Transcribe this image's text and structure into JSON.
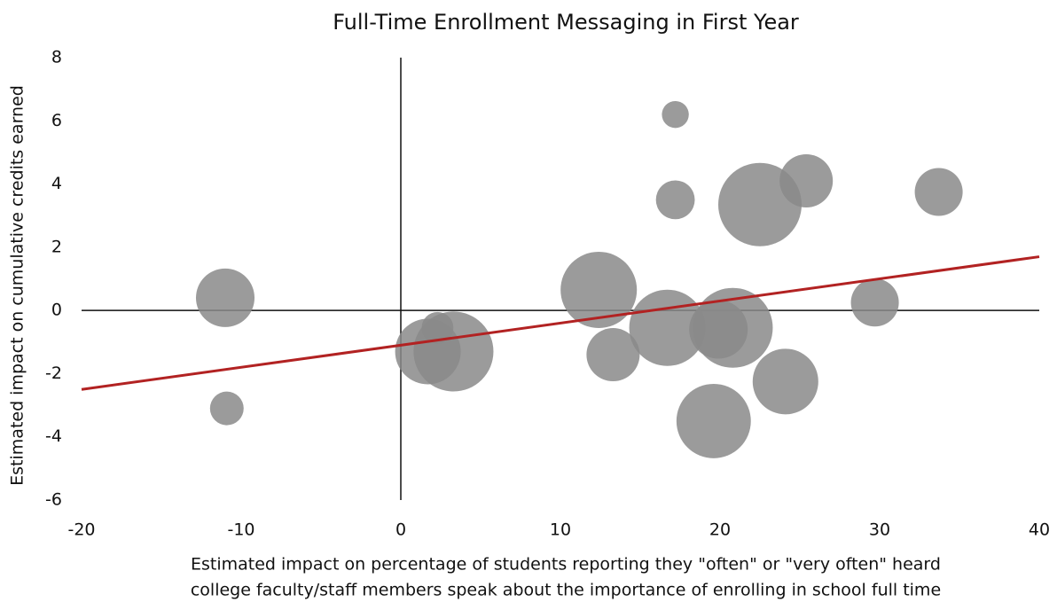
{
  "chart_data": {
    "type": "bubble",
    "title": "Full-Time Enrollment Messaging in First Year",
    "x_label_lines": [
      "Estimated impact on percentage of students reporting they \"often\" or \"very often\" heard",
      "college faculty/staff members speak about the importance of enrolling in school full time"
    ],
    "y_label": "Estimated impact on cumulative credits earned",
    "xlim": [
      -20,
      40
    ],
    "ylim": [
      -6,
      8
    ],
    "xticks": [
      -20,
      -10,
      0,
      10,
      20,
      30,
      40
    ],
    "yticks": [
      -6,
      -4,
      -2,
      0,
      2,
      4,
      6,
      8
    ],
    "color": "#8a8a8a",
    "x": [
      -11,
      -10.9,
      17.2,
      17.2,
      22.5,
      25.4,
      33.7,
      29.7,
      12.4,
      13.3,
      16.7,
      20.8,
      19.9,
      24.1,
      19.6,
      1.7,
      3.3,
      2.3
    ],
    "y": [
      0.4,
      -3.1,
      6.2,
      3.5,
      3.35,
      4.1,
      3.75,
      0.25,
      0.65,
      -1.4,
      -0.55,
      -0.55,
      -0.6,
      -2.25,
      -3.5,
      -1.3,
      -1.3,
      -0.55
    ],
    "sizes": [
      109,
      36,
      23,
      48,
      221,
      90,
      73,
      73,
      185,
      90,
      185,
      203,
      109,
      137,
      176,
      137,
      203,
      32
    ],
    "trendline": {
      "x": [
        -20,
        40
      ],
      "y": [
        -2.5,
        1.7
      ],
      "color": "#b22222"
    }
  }
}
